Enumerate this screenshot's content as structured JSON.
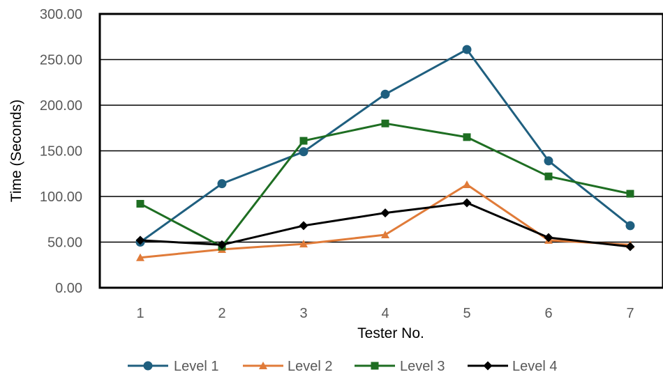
{
  "chart_data": {
    "type": "line",
    "xlabel": "Tester No.",
    "ylabel": "Time (Seconds)",
    "x": [
      1,
      2,
      3,
      4,
      5,
      6,
      7
    ],
    "ylim": [
      0,
      300
    ],
    "yticks": [
      0,
      50,
      100,
      150,
      200,
      250,
      300
    ],
    "ytick_labels": [
      "0.00",
      "50.00",
      "100.00",
      "150.00",
      "200.00",
      "250.00",
      "300.00"
    ],
    "grid": true,
    "legend": "bottom",
    "series": [
      {
        "name": "Level 1",
        "color": "#1f5f7f",
        "marker": "circle",
        "values": [
          50,
          114,
          149,
          212,
          261,
          139,
          68
        ]
      },
      {
        "name": "Level 2",
        "color": "#e07b39",
        "marker": "triangle",
        "values": [
          33,
          42,
          48,
          58,
          113,
          52,
          47
        ]
      },
      {
        "name": "Level 3",
        "color": "#1e6e22",
        "marker": "square",
        "values": [
          92,
          45,
          161,
          180,
          165,
          122,
          103
        ]
      },
      {
        "name": "Level 4",
        "color": "#000000",
        "marker": "diamond",
        "values": [
          52,
          47,
          68,
          82,
          93,
          55,
          45
        ]
      }
    ]
  }
}
